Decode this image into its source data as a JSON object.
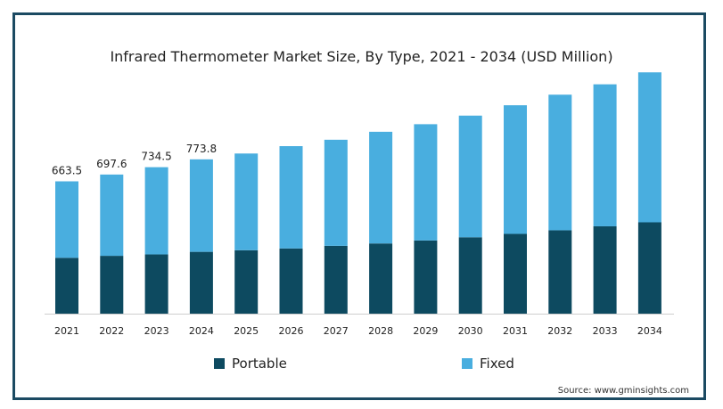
{
  "chart_data": {
    "type": "bar",
    "stacked": true,
    "title": "Infrared Thermometer Market Size, By Type, 2021 - 2034 (USD Million)",
    "categories": [
      "2021",
      "2022",
      "2023",
      "2024",
      "2025",
      "2026",
      "2027",
      "2028",
      "2029",
      "2030",
      "2031",
      "2032",
      "2033",
      "2034"
    ],
    "series": [
      {
        "name": "Portable",
        "color": "#0d4a60",
        "values": [
          280,
          290,
          297,
          310,
          318,
          327,
          340,
          352,
          367,
          383,
          400,
          418,
          438,
          458
        ]
      },
      {
        "name": "Fixed",
        "color": "#49aedf",
        "values": [
          383.5,
          407.6,
          437.5,
          463.8,
          485,
          513,
          532,
          560,
          583,
          610,
          645,
          680,
          712,
          752
        ]
      }
    ],
    "data_labels": [
      "663.5",
      "697.6",
      "734.5",
      "773.8"
    ],
    "ylim": [
      0,
      1260
    ],
    "grid": false,
    "legend_position": "bottom"
  },
  "source": "Source: www.gminsights.com"
}
